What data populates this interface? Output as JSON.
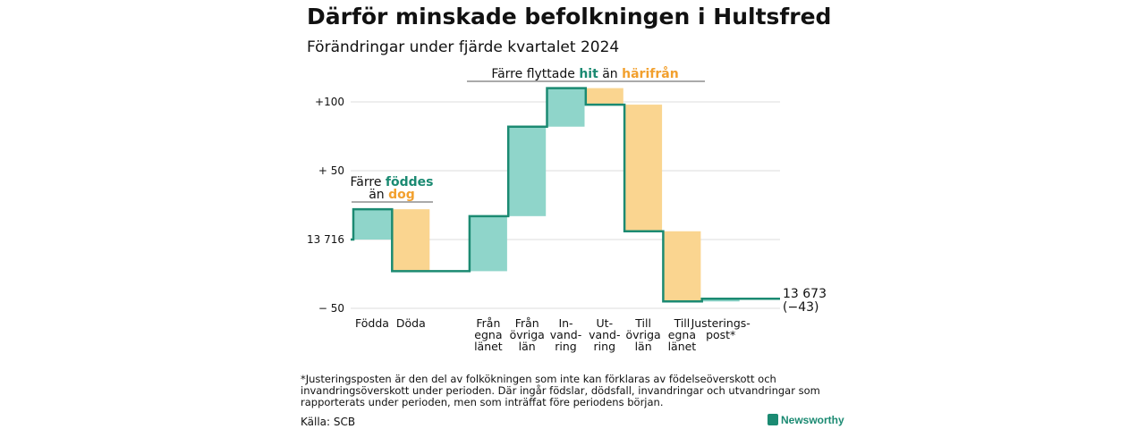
{
  "title": "Därför minskade befolkningen i Hultsfred",
  "subtitle": "Förändringar under fjärde kvartalet 2024",
  "footnote": "*Justeringsposten är den del av folkökningen som inte kan förklaras av födelseöverskott och invandringsöverskott under perioden. Där ingår födslar, dödsfall, invandringar och utvandringar som rapporterats under perioden, men som inträffat före periodens början.",
  "source": "Källa: SCB",
  "brand": "Newsworthy",
  "colors": {
    "increase": "#8fd5ca",
    "decrease": "#fad590",
    "line": "#1b8a72",
    "teal_text": "#1b8a72",
    "orange_text": "#f2a02e",
    "grid": "#dddddd"
  },
  "chart_data": {
    "type": "waterfall",
    "start_value": 13716,
    "end_value": 13673,
    "end_label": "13 673",
    "end_change": "(−43)",
    "y_ticks": [
      {
        "value": -50,
        "label": "− 50"
      },
      {
        "value": 0,
        "label": "13 716"
      },
      {
        "value": 50,
        "label": "+ 50"
      },
      {
        "value": 100,
        "label": "+100"
      }
    ],
    "ylim": [
      -55,
      112
    ],
    "steps": [
      {
        "label_lines": [
          "Födda"
        ],
        "change": 22,
        "kind": "increase"
      },
      {
        "label_lines": [
          "Döda"
        ],
        "change": -45,
        "kind": "decrease"
      },
      {
        "label_lines": [],
        "change": 0,
        "kind": "gap"
      },
      {
        "label_lines": [
          "Från",
          "egna",
          "länet"
        ],
        "change": 40,
        "kind": "increase"
      },
      {
        "label_lines": [
          "Från",
          "övriga",
          "län"
        ],
        "change": 65,
        "kind": "increase"
      },
      {
        "label_lines": [
          "In-",
          "vand-",
          "ring"
        ],
        "change": 28,
        "kind": "increase"
      },
      {
        "label_lines": [
          "Ut-",
          "vand-",
          "ring"
        ],
        "change": -12,
        "kind": "decrease"
      },
      {
        "label_lines": [
          "Till",
          "övriga",
          "län"
        ],
        "change": -92,
        "kind": "decrease"
      },
      {
        "label_lines": [
          "Till",
          "egna",
          "länet"
        ],
        "change": -51,
        "kind": "decrease"
      },
      {
        "label_lines": [
          "Justerings-",
          "post*"
        ],
        "change": 2,
        "kind": "increase"
      }
    ],
    "annotations": [
      {
        "parts": [
          {
            "text": "Färre ",
            "style": "plain"
          },
          {
            "text": "föddes",
            "style": "teal"
          }
        ]
      },
      {
        "parts": [
          {
            "text": "än ",
            "style": "plain"
          },
          {
            "text": "dog",
            "style": "orange"
          }
        ]
      },
      {
        "parts": [
          {
            "text": "Färre flyttade ",
            "style": "plain"
          },
          {
            "text": "hit",
            "style": "teal"
          },
          {
            "text": " än ",
            "style": "plain"
          },
          {
            "text": "härifrån",
            "style": "orange"
          }
        ]
      }
    ]
  }
}
